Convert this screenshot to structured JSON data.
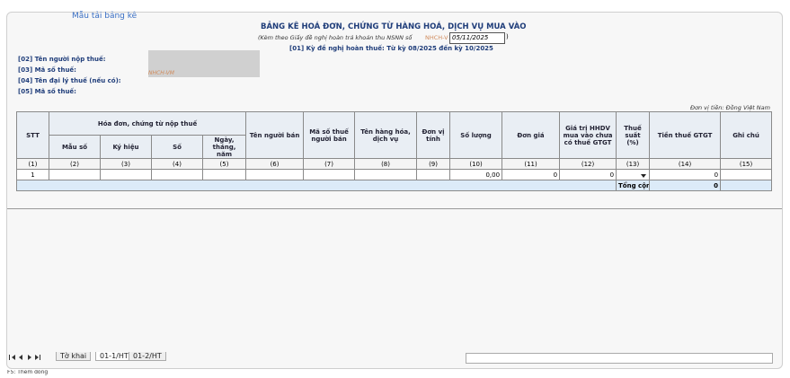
{
  "header": {
    "template_link": "Mẫu tải bảng kê",
    "title": "BẢNG KÊ HOÁ ĐƠN, CHỨNG TỪ HÀNG HOÁ, DỊCH VỤ MUA VÀO",
    "subtitle_prefix": "(Kèm theo Giấy đề nghị hoàn trả khoản thu NSNN số",
    "subtitle_code": "NHCH-V",
    "subtitle_date": "05/11/2025",
    "subtitle_suffix": ")",
    "period": "[01] Kỳ đề nghị hoàn thuế: Từ kỳ 08/2025 đến kỳ 10/2025"
  },
  "fields": {
    "labels": [
      "[02] Tên người nộp thuế:",
      "[03] Mã số thuế:",
      "[04] Tên đại lý thuế (nếu có):",
      "[05] Mã số thuế:"
    ],
    "tax_code_value": "NHCH-VM"
  },
  "currency_note": "Đơn vị tiền: Đồng Việt Nam",
  "table": {
    "group_header": "Hóa đơn, chứng từ nộp thuế",
    "columns": [
      "STT",
      "Mẫu số",
      "Ký hiệu",
      "Số",
      "Ngày, tháng, năm",
      "Tên người bán",
      "Mã số thuế người bán",
      "Tên hàng hóa, dịch vụ",
      "Đơn vị tính",
      "Số lượng",
      "Đơn giá",
      "Giá trị HHDV mua vào chưa có thuế GTGT",
      "Thuế suất (%)",
      "Tiền thuế GTGT",
      "Ghi chú"
    ],
    "column_numbers": [
      "(1)",
      "(2)",
      "(3)",
      "(4)",
      "(5)",
      "(6)",
      "(7)",
      "(8)",
      "(9)",
      "(10)",
      "(11)",
      "(12)",
      "(13)",
      "(14)",
      "(15)"
    ],
    "rows": [
      {
        "stt": "1",
        "quantity": "0,00",
        "unit_price": "0",
        "value": "0",
        "tax": "0"
      }
    ],
    "total_label": "Tổng cộng",
    "total_value": "0"
  },
  "tabs": [
    "Tờ khai",
    "01-1/HT",
    "01-2/HT"
  ],
  "status": "F5: Thêm dòng"
}
